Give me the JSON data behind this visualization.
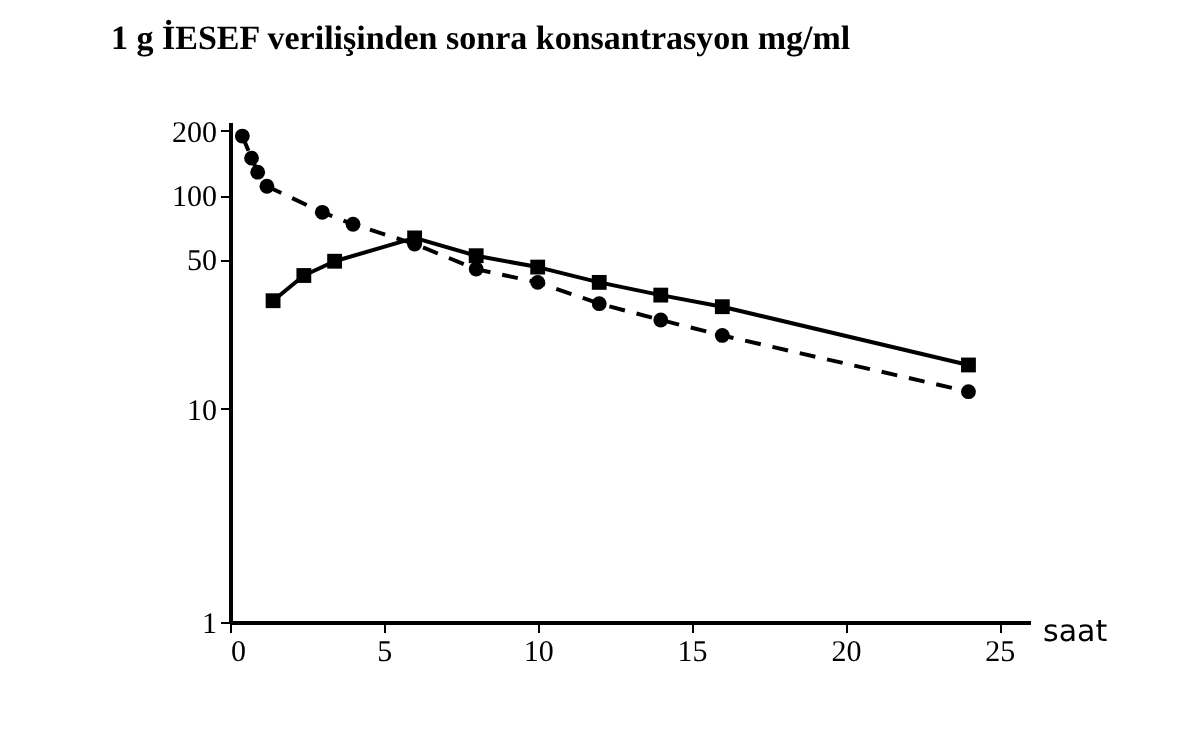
{
  "chart_data": {
    "type": "line",
    "title": "1 g İESEF verilişinden sonra konsantrasyon mg/ml",
    "xlabel": "saat",
    "log": "y",
    "grid": false,
    "xlim": [
      0,
      26
    ],
    "xticks": [
      0,
      5,
      10,
      15,
      20,
      25
    ],
    "ylim": [
      1,
      220
    ],
    "yticks": [
      1,
      10,
      50,
      100,
      200
    ],
    "series": [
      {
        "color": "#000000",
        "line_style": "dashed",
        "marker": "circle",
        "x": [
          0.4,
          0.7,
          0.9,
          1.2,
          3,
          4,
          6,
          8,
          10,
          12,
          14,
          16,
          24
        ],
        "values": [
          189,
          149,
          128,
          110,
          83,
          73,
          59,
          45,
          39,
          31,
          26,
          22,
          12
        ]
      },
      {
        "color": "#000000",
        "line_style": "solid",
        "marker": "square",
        "x": [
          1.4,
          2.4,
          3.4,
          6,
          8,
          10,
          12,
          14,
          16,
          24
        ],
        "values": [
          32,
          42,
          49,
          63,
          52,
          46,
          39,
          34,
          30,
          16
        ]
      }
    ]
  }
}
